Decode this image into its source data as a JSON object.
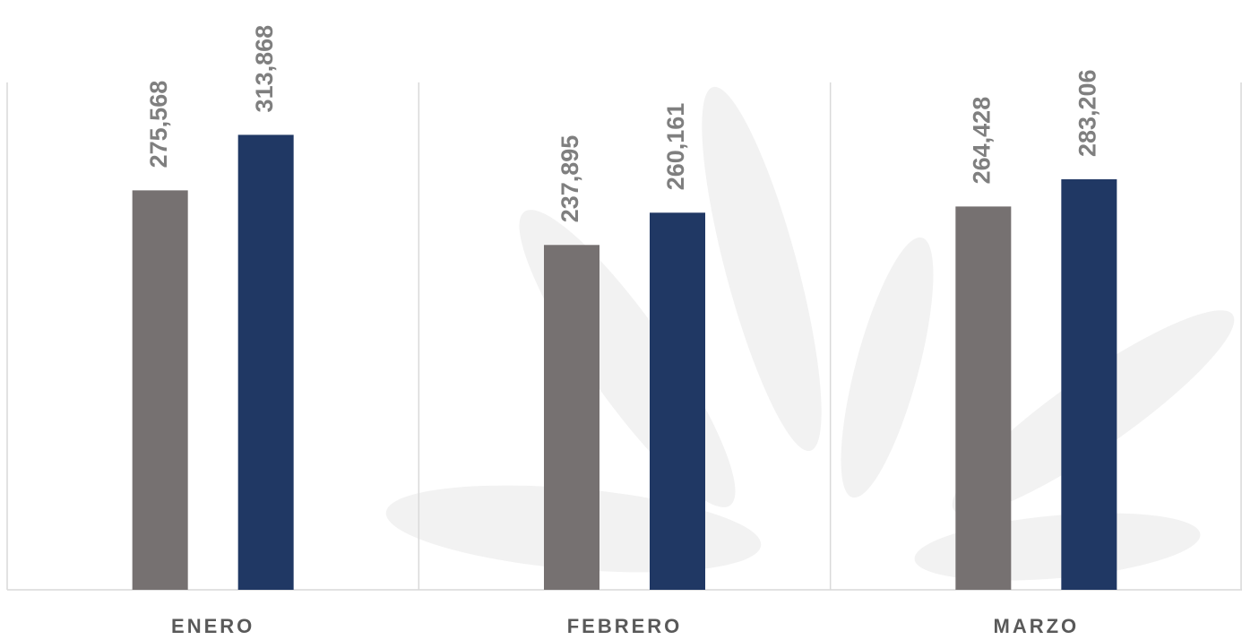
{
  "chart_data": {
    "type": "bar",
    "categories": [
      "ENERO",
      "FEBRERO",
      "MARZO"
    ],
    "series": [
      {
        "color": "#767171",
        "values": [
          275568,
          237895,
          264428
        ],
        "value_labels": [
          "275,568",
          "237,895",
          "264,428"
        ]
      },
      {
        "color": "#203864",
        "values": [
          313868,
          260161,
          283206
        ],
        "value_labels": [
          "313,868",
          "260,161",
          "283,206"
        ]
      }
    ],
    "ylim": [
      0,
      350000
    ],
    "grid": false
  }
}
